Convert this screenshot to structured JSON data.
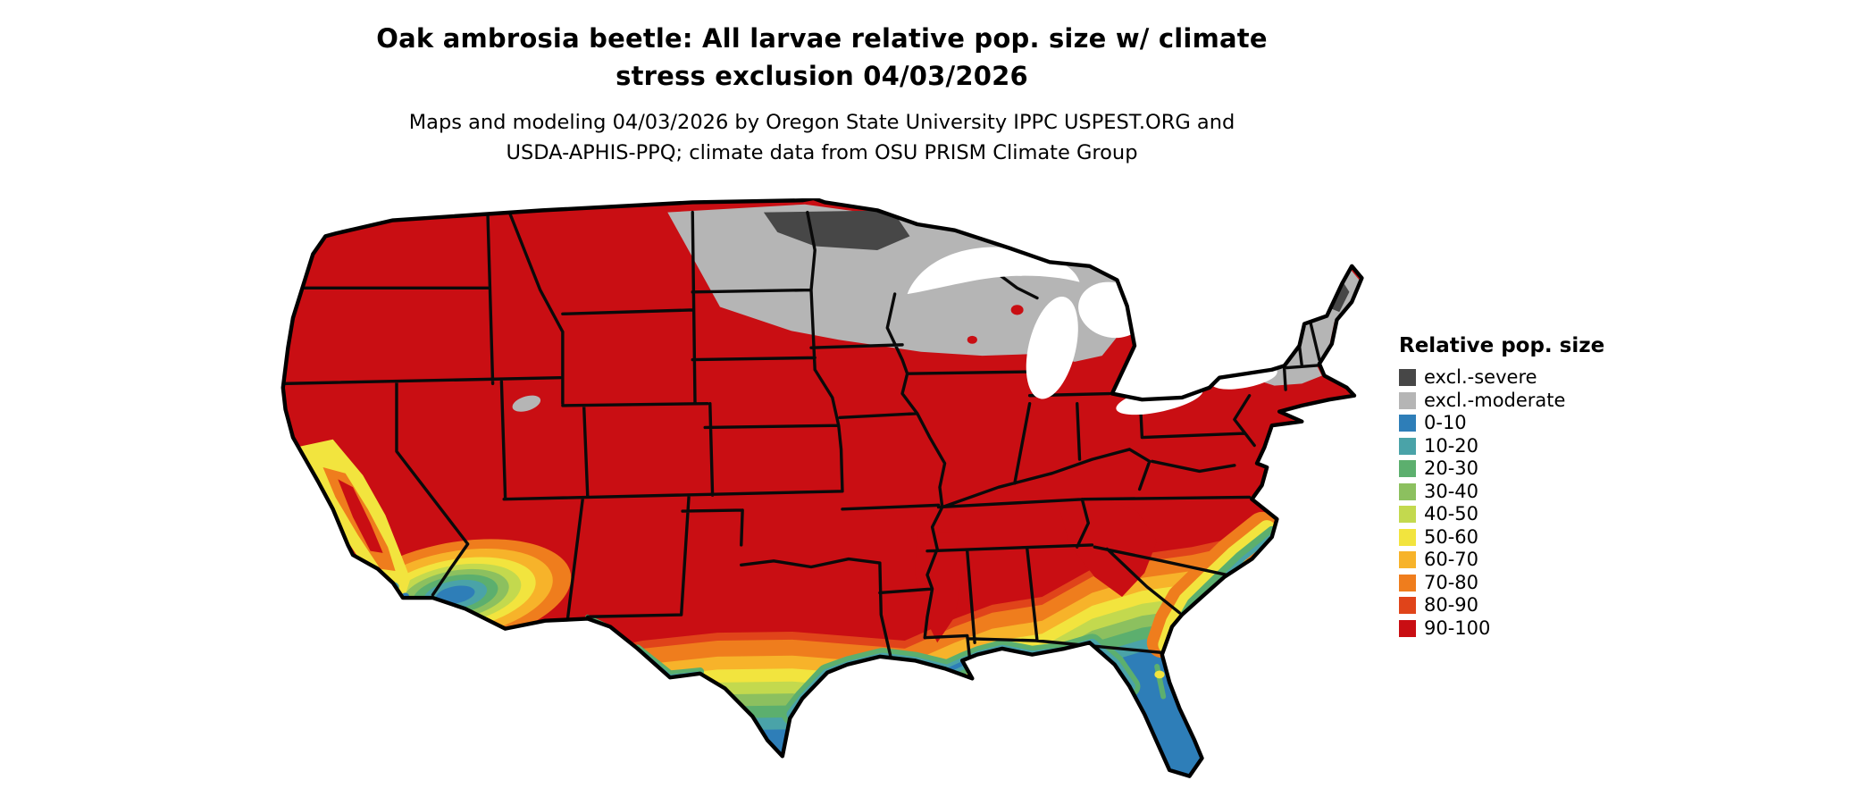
{
  "title": {
    "line1": "Oak ambrosia beetle: All larvae relative pop. size w/ climate",
    "line2": "stress exclusion 04/03/2026"
  },
  "subtitle": {
    "line1": "Maps and modeling 04/03/2026 by Oregon State University IPPC USPEST.ORG and",
    "line2": "USDA-APHIS-PPQ; climate data from OSU PRISM Climate Group"
  },
  "legend": {
    "title": "Relative pop. size",
    "items": [
      {
        "key": "excl_severe",
        "label": "excl.-severe",
        "color": "#474747"
      },
      {
        "key": "excl_moderate",
        "label": "excl.-moderate",
        "color": "#b5b5b5"
      },
      {
        "key": "r0_10",
        "label": "0-10",
        "color": "#2e7eb8"
      },
      {
        "key": "r10_20",
        "label": "10-20",
        "color": "#4aa3a8"
      },
      {
        "key": "r20_30",
        "label": "20-30",
        "color": "#5caf6e"
      },
      {
        "key": "r30_40",
        "label": "30-40",
        "color": "#8cc05f"
      },
      {
        "key": "r40_50",
        "label": "40-50",
        "color": "#c3d94e"
      },
      {
        "key": "r50_60",
        "label": "50-60",
        "color": "#f2e43e"
      },
      {
        "key": "r60_70",
        "label": "60-70",
        "color": "#f7b32a"
      },
      {
        "key": "r70_80",
        "label": "70-80",
        "color": "#ef7d1d"
      },
      {
        "key": "r80_90",
        "label": "80-90",
        "color": "#e0441a"
      },
      {
        "key": "r90_100",
        "label": "90-100",
        "color": "#c90e13"
      }
    ]
  }
}
